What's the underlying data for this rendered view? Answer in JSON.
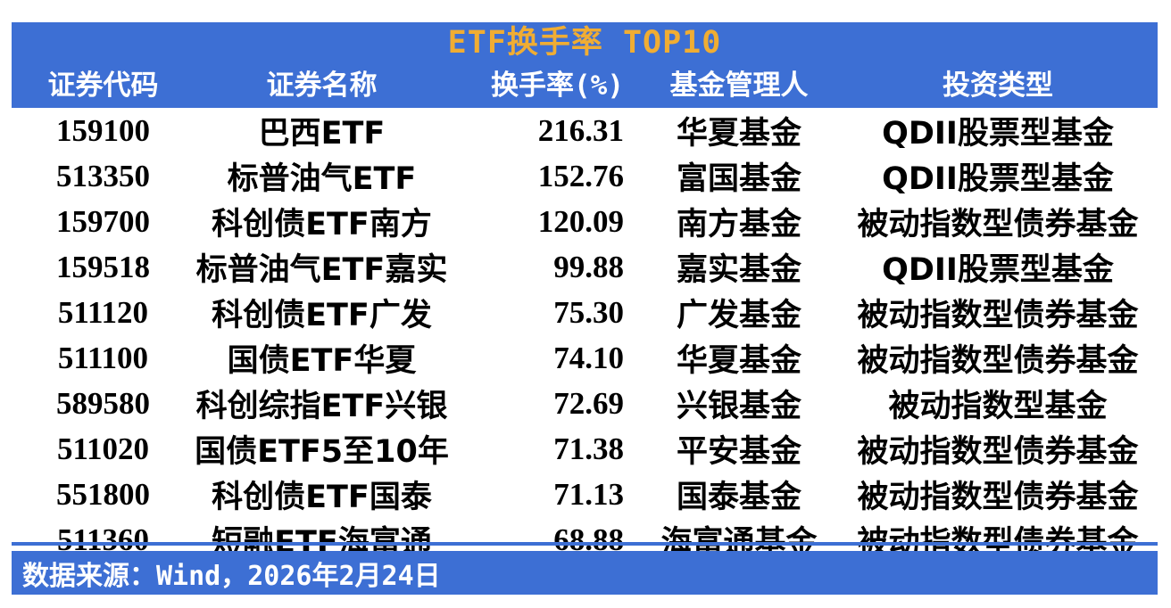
{
  "title": "ETF换手率 TOP10",
  "footer": {
    "source": "数据来源：Wind，2026年2月24日"
  },
  "colors": {
    "panel_blue": "#3D6FD4",
    "title_gold": "#F0AD33",
    "header_text": "#FFFFFF",
    "body_text": "#000000",
    "footer_text": "#FFFFFF",
    "background": "#FFFFFF"
  },
  "chart_data": {
    "type": "table",
    "title": "ETF换手率 TOP10",
    "columns": [
      "证券代码",
      "证券名称",
      "换手率(%)",
      "基金管理人",
      "投资类型"
    ],
    "rows": [
      [
        "159100",
        "巴西ETF",
        "216.31",
        "华夏基金",
        "QDII股票型基金"
      ],
      [
        "513350",
        "标普油气ETF",
        "152.76",
        "富国基金",
        "QDII股票型基金"
      ],
      [
        "159700",
        "科创债ETF南方",
        "120.09",
        "南方基金",
        "被动指数型债券基金"
      ],
      [
        "159518",
        "标普油气ETF嘉实",
        "99.88",
        "嘉实基金",
        "QDII股票型基金"
      ],
      [
        "511120",
        "科创债ETF广发",
        "75.30",
        "广发基金",
        "被动指数型债券基金"
      ],
      [
        "511100",
        "国债ETF华夏",
        "74.10",
        "华夏基金",
        "被动指数型债券基金"
      ],
      [
        "589580",
        "科创综指ETF兴银",
        "72.69",
        "兴银基金",
        "被动指数型基金"
      ],
      [
        "511020",
        "国债ETF5至10年",
        "71.38",
        "平安基金",
        "被动指数型债券基金"
      ],
      [
        "551800",
        "科创债ETF国泰",
        "71.13",
        "国泰基金",
        "被动指数型债券基金"
      ],
      [
        "511360",
        "短融ETF海富通",
        "68.88",
        "海富通基金",
        "被动指数型债券基金"
      ]
    ],
    "source": "数据来源：Wind，2026年2月24日",
    "layout": {
      "grid": false,
      "header_position": "top",
      "turnover_alignment": "right"
    }
  }
}
